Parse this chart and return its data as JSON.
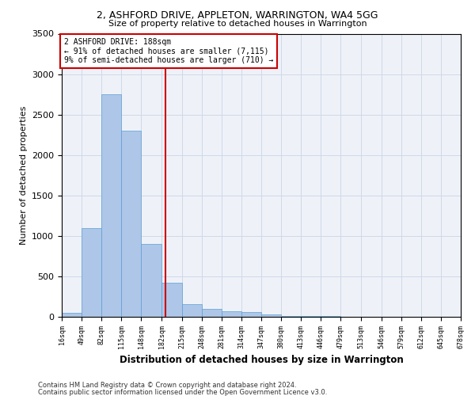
{
  "title": "2, ASHFORD DRIVE, APPLETON, WARRINGTON, WA4 5GG",
  "subtitle": "Size of property relative to detached houses in Warrington",
  "xlabel": "Distribution of detached houses by size in Warrington",
  "ylabel": "Number of detached properties",
  "footer_line1": "Contains HM Land Registry data © Crown copyright and database right 2024.",
  "footer_line2": "Contains public sector information licensed under the Open Government Licence v3.0.",
  "annotation_line1": "2 ASHFORD DRIVE: 188sqm",
  "annotation_line2": "← 91% of detached houses are smaller (7,115)",
  "annotation_line3": "9% of semi-detached houses are larger (710) →",
  "property_size": 188,
  "bin_edges": [
    16,
    49,
    82,
    115,
    148,
    182,
    215,
    248,
    281,
    314,
    347,
    380,
    413,
    446,
    479,
    513,
    546,
    579,
    612,
    645,
    678
  ],
  "bar_heights": [
    50,
    1100,
    2750,
    2300,
    900,
    420,
    160,
    100,
    70,
    55,
    30,
    10,
    8,
    5,
    3,
    2,
    2,
    1,
    0,
    0
  ],
  "bar_color": "#aec6e8",
  "bar_edge_color": "#5a9fd4",
  "vline_color": "#cc0000",
  "vline_x": 188,
  "annotation_box_color": "#cc0000",
  "grid_color": "#d0d8e8",
  "background_color": "#eef2f8",
  "ylim": [
    0,
    3500
  ],
  "yticks": [
    0,
    500,
    1000,
    1500,
    2000,
    2500,
    3000,
    3500
  ]
}
